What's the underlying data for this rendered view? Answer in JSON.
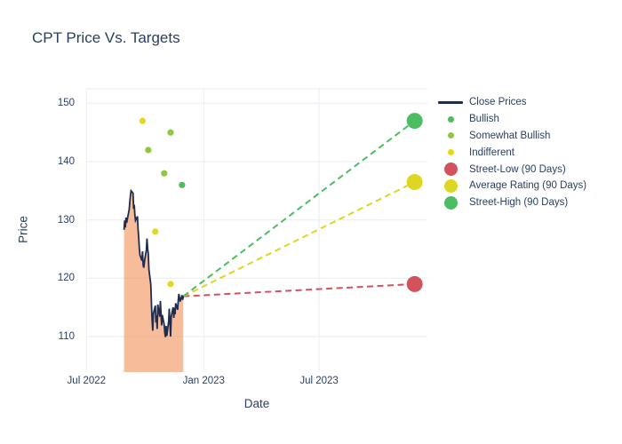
{
  "title": "CPT Price Vs. Targets",
  "colors": {
    "text": "#2a3f5f",
    "gridline": "#edf1f6",
    "close_line": "#1f2c4f",
    "close_fill": "rgba(240,135,71,0.55)",
    "bullish": "#4fbb5d",
    "somewhat_bullish": "#8fc740",
    "indifferent": "#e3d81e",
    "street_low": "#d2525e",
    "average_rating": "#ddd622",
    "street_high": "#4dbd63",
    "background": "#ffffff"
  },
  "legend": {
    "items": [
      {
        "label": "Close Prices",
        "marker": "line",
        "color": "#1f2c4f"
      },
      {
        "label": "Bullish",
        "marker": "dot-small",
        "color": "#4fbb5d"
      },
      {
        "label": "Somewhat Bullish",
        "marker": "dot-small",
        "color": "#8fc740"
      },
      {
        "label": "Indifferent",
        "marker": "dot-small",
        "color": "#e3d81e"
      },
      {
        "label": "Street-Low (90 Days)",
        "marker": "dot-large",
        "color": "#d2525e"
      },
      {
        "label": "Average Rating (90 Days)",
        "marker": "dot-large",
        "color": "#ddd622"
      },
      {
        "label": "Street-High (90 Days)",
        "marker": "dot-large",
        "color": "#4dbd63"
      }
    ]
  },
  "chart_data": {
    "type": "line",
    "title": "CPT Price Vs. Targets",
    "xlabel": "Date",
    "ylabel": "Price",
    "x_range": [
      "2022-07-01",
      "2023-12-18"
    ],
    "y_range": [
      103.9,
      152.5
    ],
    "y_tick_values": [
      150,
      140,
      130,
      120,
      110
    ],
    "y_tick_labels": [
      "150",
      "140",
      "130",
      "120",
      "110"
    ],
    "x_ticks": [
      {
        "label": "Jul 2022",
        "date": "2022-07-01"
      },
      {
        "label": "Jan 2023",
        "date": "2023-01-01"
      },
      {
        "label": "Jul 2023",
        "date": "2023-07-01"
      }
    ],
    "grid": true,
    "legend_position": "right",
    "close_prices": {
      "name": "Close Prices",
      "points": [
        [
          "2022-08-29",
          128.3
        ],
        [
          "2022-08-30",
          129.9
        ],
        [
          "2022-08-31",
          128.7
        ],
        [
          "2022-09-01",
          130.4
        ],
        [
          "2022-09-02",
          129.5
        ],
        [
          "2022-09-06",
          131.8
        ],
        [
          "2022-09-07",
          133.1
        ],
        [
          "2022-09-08",
          134.2
        ],
        [
          "2022-09-09",
          135.0
        ],
        [
          "2022-09-12",
          134.6
        ],
        [
          "2022-09-13",
          131.9
        ],
        [
          "2022-09-14",
          132.6
        ],
        [
          "2022-09-15",
          130.8
        ],
        [
          "2022-09-16",
          129.9
        ],
        [
          "2022-09-19",
          130.6
        ],
        [
          "2022-09-20",
          128.4
        ],
        [
          "2022-09-21",
          127.0
        ],
        [
          "2022-09-22",
          125.2
        ],
        [
          "2022-09-23",
          124.0
        ],
        [
          "2022-09-26",
          123.0
        ],
        [
          "2022-09-27",
          124.6
        ],
        [
          "2022-09-28",
          122.3
        ],
        [
          "2022-09-29",
          121.8
        ],
        [
          "2022-09-30",
          122.9
        ],
        [
          "2022-10-03",
          124.8
        ],
        [
          "2022-10-04",
          126.8
        ],
        [
          "2022-10-05",
          125.0
        ],
        [
          "2022-10-06",
          124.2
        ],
        [
          "2022-10-07",
          121.5
        ],
        [
          "2022-10-10",
          118.9
        ],
        [
          "2022-10-11",
          115.4
        ],
        [
          "2022-10-12",
          112.8
        ],
        [
          "2022-10-13",
          111.0
        ],
        [
          "2022-10-14",
          113.9
        ],
        [
          "2022-10-17",
          115.3
        ],
        [
          "2022-10-18",
          112.4
        ],
        [
          "2022-10-19",
          113.6
        ],
        [
          "2022-10-20",
          111.3
        ],
        [
          "2022-10-21",
          115.5
        ],
        [
          "2022-10-24",
          113.4
        ],
        [
          "2022-10-25",
          116.1
        ],
        [
          "2022-10-26",
          114.0
        ],
        [
          "2022-10-27",
          111.9
        ],
        [
          "2022-10-28",
          113.7
        ],
        [
          "2022-10-31",
          112.0
        ],
        [
          "2022-11-01",
          110.6
        ],
        [
          "2022-11-02",
          109.9
        ],
        [
          "2022-11-03",
          111.8
        ],
        [
          "2022-11-04",
          110.1
        ],
        [
          "2022-11-07",
          112.6
        ],
        [
          "2022-11-08",
          114.8
        ],
        [
          "2022-11-09",
          112.2
        ],
        [
          "2022-11-10",
          110.0
        ],
        [
          "2022-11-11",
          113.4
        ],
        [
          "2022-11-14",
          115.0
        ],
        [
          "2022-11-15",
          113.2
        ],
        [
          "2022-11-16",
          114.9
        ],
        [
          "2022-11-17",
          113.8
        ],
        [
          "2022-11-18",
          115.7
        ],
        [
          "2022-11-21",
          114.6
        ],
        [
          "2022-11-22",
          116.2
        ],
        [
          "2022-11-23",
          117.3
        ],
        [
          "2022-11-25",
          116.0
        ],
        [
          "2022-11-28",
          117.1
        ],
        [
          "2022-11-29",
          116.3
        ],
        [
          "2022-11-30",
          116.9
        ]
      ]
    },
    "ratings": [
      {
        "name": "Bullish",
        "color_key": "bullish",
        "points": [
          [
            "2022-11-28",
            136
          ]
        ]
      },
      {
        "name": "Somewhat Bullish",
        "color_key": "somewhat_bullish",
        "points": [
          [
            "2022-10-06",
            142
          ],
          [
            "2022-10-31",
            138
          ],
          [
            "2022-11-10",
            145
          ]
        ]
      },
      {
        "name": "Indifferent",
        "color_key": "indifferent",
        "points": [
          [
            "2022-09-27",
            147
          ],
          [
            "2022-10-17",
            128
          ],
          [
            "2022-11-10",
            119
          ]
        ]
      }
    ],
    "targets": [
      {
        "name": "Street-Low (90 Days)",
        "color_key": "street_low",
        "price": 119,
        "date": "2023-11-28"
      },
      {
        "name": "Average Rating (90 Days)",
        "color_key": "average_rating",
        "price": 136.5,
        "date": "2023-11-28"
      },
      {
        "name": "Street-High (90 Days)",
        "color_key": "street_high",
        "price": 147,
        "date": "2023-11-28"
      }
    ]
  }
}
